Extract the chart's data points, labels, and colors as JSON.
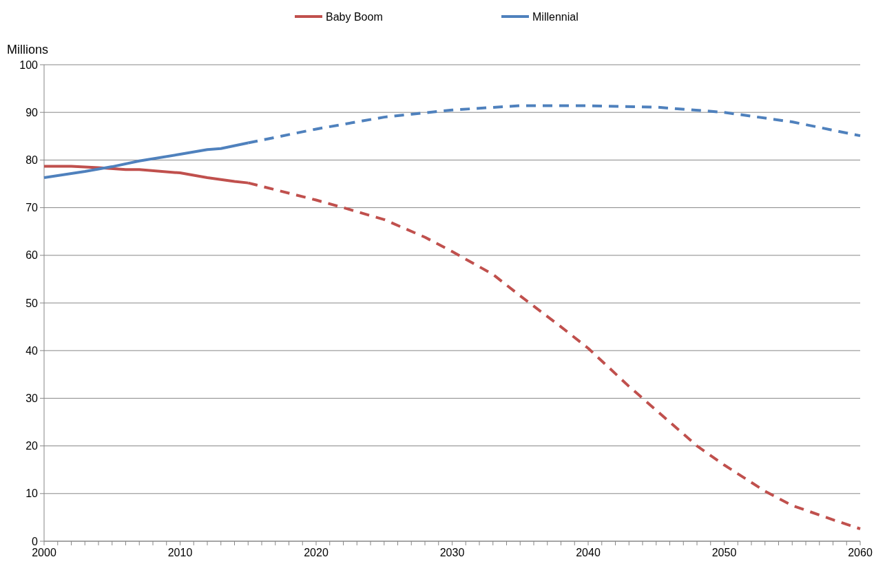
{
  "chart_data": {
    "type": "line",
    "ylabel": "Millions",
    "xlim": [
      2000,
      2060
    ],
    "ylim": [
      0,
      100
    ],
    "yticks": [
      0,
      10,
      20,
      30,
      40,
      50,
      60,
      70,
      80,
      90,
      100
    ],
    "xticks": [
      2000,
      {
        "value": 2001,
        "label": null
      },
      {
        "value": 2002,
        "label": null
      },
      {
        "value": 2003,
        "label": null
      },
      {
        "value": 2004,
        "label": null
      },
      {
        "value": 2005,
        "label": null
      },
      {
        "value": 2006,
        "label": null
      },
      {
        "value": 2007,
        "label": null
      },
      {
        "value": 2008,
        "label": null
      },
      {
        "value": 2009,
        "label": null
      },
      2010,
      {
        "value": 2011,
        "label": null
      },
      {
        "value": 2012,
        "label": null
      },
      {
        "value": 2013,
        "label": null
      },
      {
        "value": 2014,
        "label": null
      },
      {
        "value": 2015,
        "label": null
      },
      {
        "value": 2016,
        "label": null
      },
      {
        "value": 2017,
        "label": null
      },
      {
        "value": 2018,
        "label": null
      },
      {
        "value": 2019,
        "label": null
      },
      2020,
      {
        "value": 2021,
        "label": null
      },
      {
        "value": 2022,
        "label": null
      },
      {
        "value": 2023,
        "label": null
      },
      {
        "value": 2024,
        "label": null
      },
      {
        "value": 2025,
        "label": null
      },
      {
        "value": 2026,
        "label": null
      },
      {
        "value": 2027,
        "label": null
      },
      {
        "value": 2028,
        "label": null
      },
      {
        "value": 2029,
        "label": null
      },
      2030,
      {
        "value": 2031,
        "label": null
      },
      {
        "value": 2032,
        "label": null
      },
      {
        "value": 2033,
        "label": null
      },
      {
        "value": 2034,
        "label": null
      },
      {
        "value": 2035,
        "label": null
      },
      {
        "value": 2036,
        "label": null
      },
      {
        "value": 2037,
        "label": null
      },
      {
        "value": 2038,
        "label": null
      },
      {
        "value": 2039,
        "label": null
      },
      2040,
      {
        "value": 2041,
        "label": null
      },
      {
        "value": 2042,
        "label": null
      },
      {
        "value": 2043,
        "label": null
      },
      {
        "value": 2044,
        "label": null
      },
      {
        "value": 2045,
        "label": null
      },
      {
        "value": 2046,
        "label": null
      },
      {
        "value": 2047,
        "label": null
      },
      {
        "value": 2048,
        "label": null
      },
      {
        "value": 2049,
        "label": null
      },
      2050,
      {
        "value": 2051,
        "label": null
      },
      {
        "value": 2052,
        "label": null
      },
      {
        "value": 2053,
        "label": null
      },
      {
        "value": 2054,
        "label": null
      },
      {
        "value": 2055,
        "label": null
      },
      {
        "value": 2056,
        "label": null
      },
      {
        "value": 2057,
        "label": null
      },
      {
        "value": 2058,
        "label": null
      },
      {
        "value": 2059,
        "label": null
      },
      2060
    ],
    "grid": "y",
    "legend": "top",
    "marker": "none",
    "series": [
      {
        "name": "Baby Boom",
        "color": "#c0504d",
        "line_style": "solid",
        "x": [
          2000,
          2002,
          2004,
          2006,
          2007,
          2010,
          2012,
          2014,
          2015
        ],
        "values": [
          78.7,
          78.7,
          78.4,
          78.0,
          78.0,
          77.3,
          76.3,
          75.5,
          75.2
        ]
      },
      {
        "name": "Millennial",
        "color": "#4f81bd",
        "line_style": "solid",
        "x": [
          2000,
          2003,
          2005,
          2007,
          2010,
          2012,
          2013,
          2015
        ],
        "values": [
          76.3,
          77.6,
          78.6,
          79.8,
          81.2,
          82.2,
          82.4,
          83.6
        ]
      },
      {
        "color": "#c0504d",
        "line_style": "dashed",
        "x": [
          2015,
          2020,
          2022,
          2025,
          2028,
          2030,
          2033,
          2035,
          2038,
          2040,
          2043,
          2045,
          2048,
          2050,
          2053,
          2055,
          2058,
          2060
        ],
        "values": [
          75.2,
          71.6,
          70.0,
          67.5,
          63.8,
          60.8,
          56.0,
          51.5,
          45.0,
          40.5,
          32.5,
          27.5,
          20.0,
          16.0,
          10.5,
          7.5,
          4.5,
          2.6
        ]
      },
      {
        "color": "#4f81bd",
        "line_style": "dashed",
        "x": [
          2015,
          2020,
          2025,
          2030,
          2035,
          2040,
          2045,
          2050,
          2055,
          2060
        ],
        "values": [
          83.6,
          86.5,
          89.0,
          90.5,
          91.4,
          91.4,
          91.1,
          90.0,
          88.0,
          85.1
        ]
      }
    ]
  }
}
